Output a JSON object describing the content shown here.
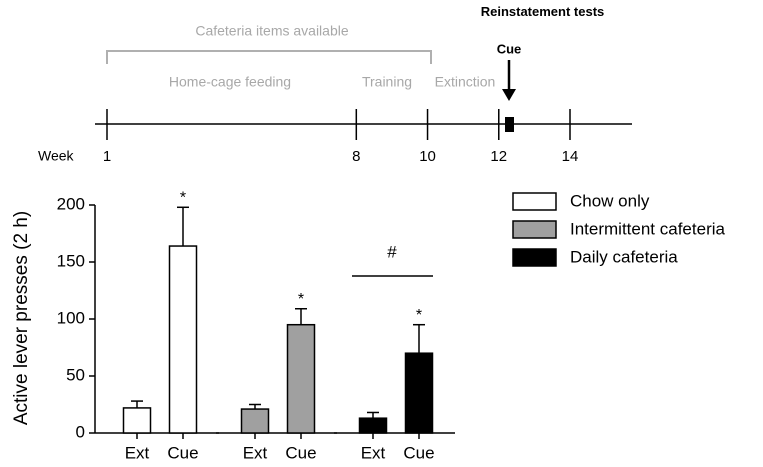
{
  "timeline": {
    "cafeteria": "Cafeteria items available",
    "phases": [
      "Home-cage feeding",
      "Training",
      "Extinction"
    ],
    "reinstatement": "Reinstatement tests",
    "cue": "Cue",
    "week_label": "Week",
    "weeks": [
      1,
      8,
      10,
      12,
      14
    ]
  },
  "chart_data": {
    "type": "bar",
    "ylabel": "Active lever presses (2 h)",
    "categories": [
      "Ext",
      "Cue"
    ],
    "ylim": [
      0,
      200
    ],
    "yticks": [
      0,
      50,
      100,
      150,
      200
    ],
    "legend": "right",
    "series": [
      {
        "name": "Chow only",
        "color": "#ffffff",
        "values": [
          22,
          164
        ],
        "errors": [
          6,
          34
        ],
        "labels": [
          null,
          "*"
        ]
      },
      {
        "name": "Intermittent cafeteria",
        "color": "#a0a0a0",
        "values": [
          21,
          95
        ],
        "errors": [
          4,
          14
        ],
        "labels": [
          null,
          "*"
        ]
      },
      {
        "name": "Daily cafeteria",
        "color": "#000000",
        "values": [
          13,
          70
        ],
        "errors": [
          5,
          25
        ],
        "labels": [
          null,
          "*"
        ]
      }
    ],
    "annotation": "#"
  }
}
